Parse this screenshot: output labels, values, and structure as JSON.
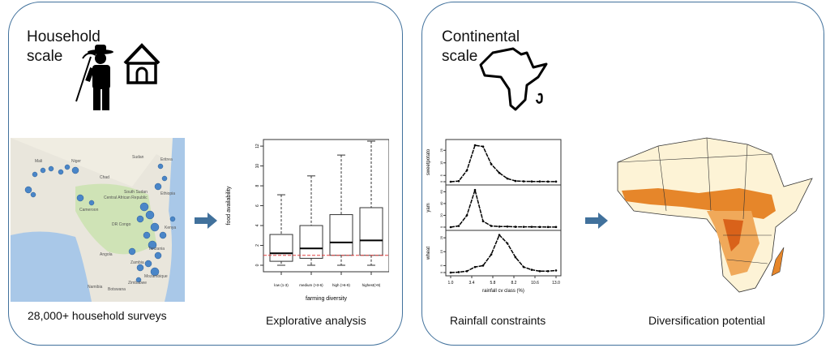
{
  "household": {
    "title_line1": "Household",
    "title_line2": "scale",
    "caption_map": "28,000+ household surveys",
    "caption_box": "Explorative analysis"
  },
  "continental": {
    "title_line1": "Continental",
    "title_line2": "scale",
    "caption_lines": "Rainfall constraints",
    "caption_map": "Diversification potential"
  },
  "map_labels": [
    "Mali",
    "Niger",
    "Chad",
    "Sudan",
    "Eritrea",
    "Central African Republic",
    "South Sudan",
    "Ethiopia",
    "Cameroon",
    "DR Congo",
    "Kenya",
    "Tanzania",
    "Angola",
    "Zambia",
    "Mozambique",
    "Namibia",
    "Botswana",
    "Zimbabwe"
  ],
  "colors": {
    "panel_border": "#41719c",
    "arrow": "#41719c",
    "ref_line": "#e04040",
    "map_dots": "#4a86c8"
  },
  "chart_data": [
    {
      "type": "box",
      "title": "",
      "xlabel": "farming diversity",
      "ylabel": "food availability",
      "ylim": [
        0,
        12.5
      ],
      "yticks": [
        0,
        2,
        4,
        6,
        8,
        10,
        12
      ],
      "categories": [
        "low (1-3)",
        "medium (>3-6)",
        "high (>6-9)",
        "highest(>9)"
      ],
      "boxes": [
        {
          "min": 0,
          "q1": 0.4,
          "median": 1.2,
          "q3": 3.1,
          "max": 7.1
        },
        {
          "min": 0,
          "q1": 0.7,
          "median": 1.7,
          "q3": 4.0,
          "max": 9.0
        },
        {
          "min": 0,
          "q1": 1.0,
          "median": 2.3,
          "q3": 5.1,
          "max": 11.1
        },
        {
          "min": 0,
          "q1": 1.0,
          "median": 2.5,
          "q3": 5.8,
          "max": 12.5
        }
      ],
      "reference_line": 1
    },
    {
      "type": "line",
      "xlabel": "rainfall cv class (%)",
      "xticks": [
        "1.0",
        "3.4",
        "5.8",
        "8.2",
        "10.6",
        "13.0"
      ],
      "xlim": [
        1,
        13
      ],
      "x": [
        1.0,
        1.92,
        2.85,
        3.77,
        4.69,
        5.62,
        6.54,
        7.46,
        8.38,
        9.31,
        10.23,
        11.15,
        12.08,
        13.0
      ],
      "series": [
        {
          "name": "sweetpotato",
          "ylim": [
            0,
            31
          ],
          "yticks": [
            "0",
            "5",
            "15",
            "25"
          ],
          "values": [
            0,
            0.5,
            9,
            29,
            28,
            14,
            7,
            2.5,
            0.6,
            0.3,
            0.2,
            0.2,
            0.1,
            0.1
          ]
        },
        {
          "name": "yam",
          "ylim": [
            0,
            66
          ],
          "yticks": [
            "0",
            "20",
            "40",
            "60"
          ],
          "values": [
            0,
            2,
            20,
            63,
            10,
            2,
            1,
            1,
            0.6,
            0.5,
            0.5,
            0.3,
            0.2,
            0.2
          ]
        },
        {
          "name": "wheat",
          "ylim": [
            0,
            28
          ],
          "yticks": [
            "0",
            "5",
            "15",
            "25"
          ],
          "values": [
            0,
            0.3,
            1,
            4,
            5,
            13,
            27,
            21,
            11,
            4,
            2,
            1,
            1,
            1.5
          ]
        }
      ]
    }
  ]
}
